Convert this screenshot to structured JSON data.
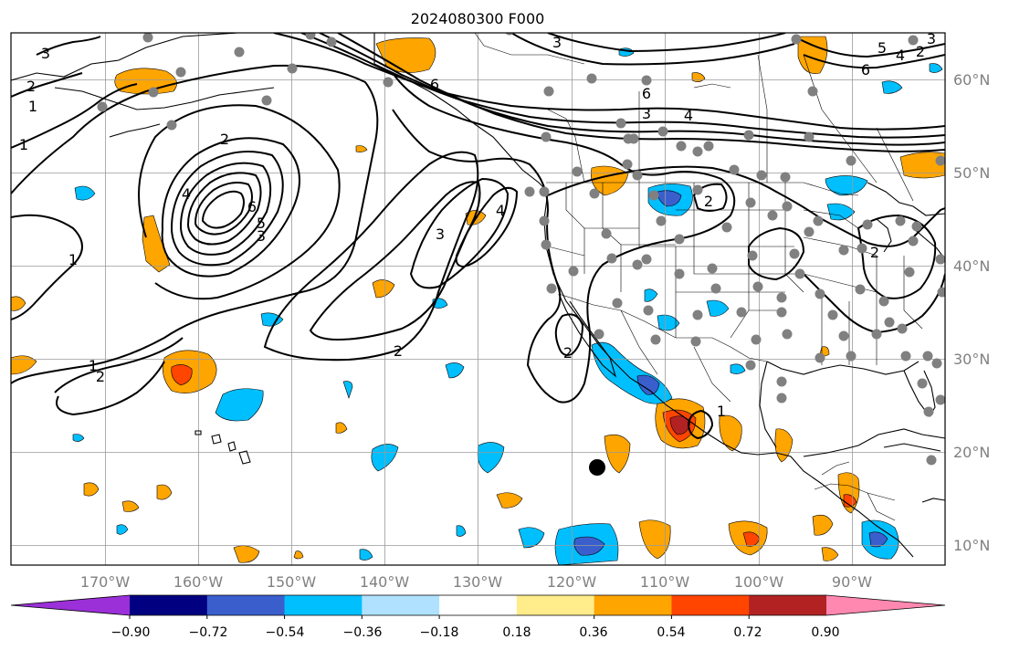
{
  "title": "2024080300 F000",
  "map": {
    "lon_range": [
      -180,
      -79
    ],
    "lat_range": [
      8,
      65
    ],
    "longitude_labels": [
      "170°W",
      "160°W",
      "150°W",
      "140°W",
      "130°W",
      "120°W",
      "110°W",
      "100°W",
      "90°W"
    ],
    "latitude_labels": [
      "60°N",
      "50°N",
      "40°N",
      "30°N",
      "20°N",
      "10°N"
    ],
    "gridlines": true,
    "contour_labels": [
      "3",
      "2",
      "1",
      "1",
      "2",
      "4",
      "6",
      "3",
      "5",
      "1",
      "3",
      "4",
      "2",
      "2",
      "1",
      "6",
      "3",
      "4",
      "6",
      "2",
      "2",
      "2",
      "1",
      "3",
      "5",
      "4",
      "2",
      "6",
      "3"
    ],
    "marker": {
      "lon": -116.5,
      "lat": 18.2
    }
  },
  "colorbar": {
    "tick_labels": [
      "−0.90",
      "−0.72",
      "−0.54",
      "−0.36",
      "−0.18",
      "0.18",
      "0.36",
      "0.54",
      "0.72",
      "0.90"
    ],
    "colors": [
      "#9b30d9",
      "#000080",
      "#3a5fcd",
      "#00bfff",
      "#b0e2ff",
      "#ffffff",
      "#ffec8b",
      "#ffa500",
      "#ff4500",
      "#b22222",
      "#ff88b0"
    ],
    "extend": "both"
  },
  "colors": {
    "gridline": "#9a9a9a",
    "station": "#808080",
    "contour": "#000000",
    "positive_1": "#ffa500",
    "positive_2": "#ff4500",
    "positive_3": "#b22222",
    "negative_1": "#00bfff",
    "negative_2": "#3a5fcd"
  }
}
